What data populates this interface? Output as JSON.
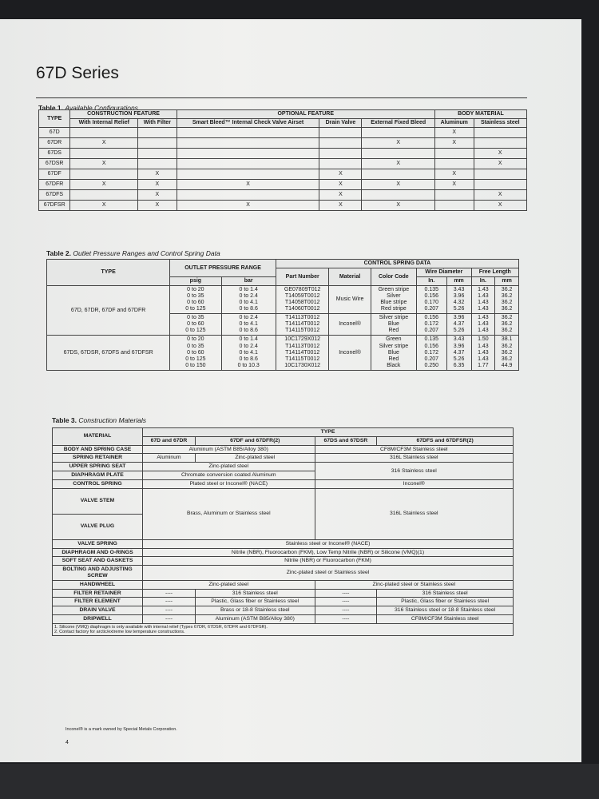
{
  "title": "67D Series",
  "table1": {
    "label": "Table 1.",
    "caption": "Available Configurations",
    "groups": [
      "CONSTRUCTION FEATURE",
      "OPTIONAL FEATURE",
      "BODY MATERIAL"
    ],
    "type_header": "TYPE",
    "columns": [
      "With Internal Relief",
      "With Filter",
      "Smart Bleed™ Internal Check Valve Airset",
      "Drain Valve",
      "External Fixed Bleed",
      "Aluminum",
      "Stainless steel"
    ],
    "mark": "X",
    "rows": [
      {
        "type": "67D",
        "marks": [
          0,
          0,
          0,
          0,
          0,
          1,
          0
        ]
      },
      {
        "type": "67DR",
        "marks": [
          1,
          0,
          0,
          0,
          1,
          1,
          0
        ]
      },
      {
        "type": "67DS",
        "marks": [
          0,
          0,
          0,
          0,
          0,
          0,
          1
        ]
      },
      {
        "type": "67DSR",
        "marks": [
          1,
          0,
          0,
          0,
          1,
          0,
          1
        ]
      },
      {
        "type": "67DF",
        "marks": [
          0,
          1,
          0,
          1,
          0,
          1,
          0
        ]
      },
      {
        "type": "67DFR",
        "marks": [
          1,
          1,
          1,
          1,
          1,
          1,
          0
        ]
      },
      {
        "type": "67DFS",
        "marks": [
          0,
          1,
          0,
          1,
          0,
          0,
          1
        ]
      },
      {
        "type": "67DFSR",
        "marks": [
          1,
          1,
          1,
          1,
          1,
          0,
          1
        ]
      }
    ]
  },
  "table2": {
    "label": "Table 2.",
    "caption": "Outlet Pressure Ranges and Control Spring Data",
    "h_type": "TYPE",
    "h_outlet": "OUTLET PRESSURE RANGE",
    "h_spring": "CONTROL SPRING DATA",
    "h_psig": "psig",
    "h_bar": "bar",
    "h_part": "Part Number",
    "h_material": "Material",
    "h_color": "Color Code",
    "h_wire": "Wire Diameter",
    "h_free": "Free Length",
    "h_in": "In.",
    "h_mm": "mm",
    "groups": [
      {
        "type": "67D, 67DR, 67DF and 67DFR",
        "material": "Music Wire",
        "psig": [
          "0 to 20",
          "0 to 35",
          "0 to 60",
          "0 to 125"
        ],
        "bar": [
          "0 to 1.4",
          "0 to 2.4",
          "0 to 4.1",
          "0 to 8.6"
        ],
        "part": [
          "GE07809T012",
          "T14059T0012",
          "T14058T0012",
          "T14060T0012"
        ],
        "color": [
          "Green stripe",
          "Silver",
          "Blue stripe",
          "Red stripe"
        ],
        "wire_in": [
          "0.135",
          "0.156",
          "0.170",
          "0.207"
        ],
        "wire_mm": [
          "3.43",
          "3.96",
          "4.32",
          "5.26"
        ],
        "free_in": [
          "1.43",
          "1.43",
          "1.43",
          "1.43"
        ],
        "free_mm": [
          "36.2",
          "36.2",
          "36.2",
          "36.2"
        ]
      },
      {
        "type": "",
        "material": "Inconel®",
        "psig": [
          "0 to 35",
          "0 to 60",
          "0 to 125"
        ],
        "bar": [
          "0 to 2.4",
          "0 to 4.1",
          "0 to 8.6"
        ],
        "part": [
          "T14113T0012",
          "T14114T0012",
          "T14115T0012"
        ],
        "color": [
          "Silver stripe",
          "Blue",
          "Red"
        ],
        "wire_in": [
          "0.156",
          "0.172",
          "0.207"
        ],
        "wire_mm": [
          "3.96",
          "4.37",
          "5.26"
        ],
        "free_in": [
          "1.43",
          "1.43",
          "1.43"
        ],
        "free_mm": [
          "36.2",
          "36.2",
          "36.2"
        ]
      },
      {
        "type": "67DS, 67DSR, 67DFS and 67DFSR",
        "material": "Inconel®",
        "psig": [
          "0 to 20",
          "0 to 35",
          "0 to 60",
          "0 to 125",
          "0 to 150"
        ],
        "bar": [
          "0 to 1.4",
          "0 to 2.4",
          "0 to 4.1",
          "0 to 8.6",
          "0 to 10.3"
        ],
        "part": [
          "10C1729X012",
          "T14113T0012",
          "T14114T0012",
          "T14115T0012",
          "10C1730X012"
        ],
        "color": [
          "Green",
          "Silver stripe",
          "Blue",
          "Red",
          "Black"
        ],
        "wire_in": [
          "0.135",
          "0.156",
          "0.172",
          "0.207",
          "0.250"
        ],
        "wire_mm": [
          "3.43",
          "3.96",
          "4.37",
          "5.26",
          "6.35"
        ],
        "free_in": [
          "1.50",
          "1.43",
          "1.43",
          "1.43",
          "1.77"
        ],
        "free_mm": [
          "38.1",
          "36.2",
          "36.2",
          "36.2",
          "44.9"
        ]
      }
    ]
  },
  "table3": {
    "label": "Table 3.",
    "caption": "Construction Materials",
    "h_material": "MATERIAL",
    "h_type": "TYPE",
    "types": [
      "67D and 67DR",
      "67DF and 67DFR(2)",
      "67DS and 67DSR",
      "67DFS and 67DFSR(2)"
    ],
    "body_label": "BODY AND SPRING CASE",
    "body_al": "Aluminum (ASTM B85/Alloy 380)",
    "body_ss": "CF8M/CF3M Stainless steel",
    "retainer_label": "SPRING RETAINER",
    "retainer_1": "Aluminum",
    "retainer_2": "Zinc-plated steel",
    "retainer_ss": "316L Stainless steel",
    "seat_label": "UPPER SPRING SEAT",
    "seat_al": "Zinc-plated steel",
    "seat_ss": "316 Stainless steel",
    "plate_label": "DIAPHRAGM PLATE",
    "plate_al": "Chromate conversion coated Aluminum",
    "spring_label": "CONTROL SPRING",
    "spring_al": "Plated steel or Inconel® (NACE)",
    "spring_ss": "Inconel®",
    "stem_label": "VALVE STEM",
    "plug_label": "VALVE PLUG",
    "stem_al": "Brass, Aluminum or Stainless steel",
    "stem_ss": "316L Stainless steel",
    "vspring_label": "VALVE SPRING",
    "vspring": "Stainless steel or Inconel® (NACE)",
    "diaph_label": "DIAPHRAGM AND O-RINGS",
    "diaph": "Nitrile (NBR), Fluorocarbon (FKM), Low Temp Nitrile (NBR) or Silicone (VMQ)(1)",
    "soft_label": "SOFT SEAT AND GASKETS",
    "soft": "Nitrile (NBR) or Fluorocarbon (FKM)",
    "bolt_label": "BOLTING AND ADJUSTING SCREW",
    "bolt": "Zinc-plated steel or Stainless steel",
    "hand_label": "HANDWHEEL",
    "hand_al": "Zinc-plated steel",
    "hand_ss": "Zinc-plated steel or Stainless steel",
    "dash": "----",
    "fret_label": "FILTER RETAINER",
    "fret_2": "316 Stainless steel",
    "fret_4": "316 Stainless steel",
    "fel_label": "FILTER ELEMENT",
    "fel_2": "Plastic, Glass fiber or Stainless steel",
    "fel_4": "Plastic, Glass fiber or Stainless steel",
    "drain_label": "DRAIN VALVE",
    "drain_2": "Brass or 18-8 Stainless steel",
    "drain_4": "316 Stainless steel or 18-8 Stainless steel",
    "drip_label": "DRIPWELL",
    "drip_2": "Aluminum (ASTM B85/Alloy 380)",
    "drip_4": "CF8M/CF3M Stainless steel",
    "footnotes": [
      "1. Silicone (VMQ) diaphragm is only available with internal relief (Types 67DR, 67DSR, 67DFR and 67DFSR).",
      "2. Contact factory for arctic/extreme low temperature constructions."
    ]
  },
  "trademark_note": "Inconel® is a mark owned by Special Metals Corporation.",
  "page_number": "4"
}
